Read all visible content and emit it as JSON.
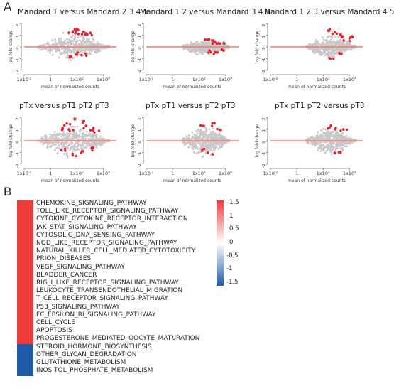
{
  "panel_a_letter": "A",
  "panel_b_letter": "B",
  "chart_data": [
    {
      "type": "scatter",
      "title": "Mandard 1 versus Mandard 2 3 4 5",
      "xlabel": "mean of normalized counts",
      "ylabel": "log fold change",
      "xscale": "log",
      "xlim": [
        0.01,
        100000
      ],
      "ylim": [
        -2.2,
        2.2
      ],
      "x_ticks": [
        "1x10-2",
        "1",
        "1x102",
        "1x104"
      ],
      "y_ticks": [
        "-2",
        "-1",
        "0",
        "1",
        "2"
      ],
      "cloud": {
        "color": "#c8c8c8",
        "x_range": [
          0.1,
          30000
        ],
        "max_lfc": 1.3
      },
      "significant": {
        "color": "#e8202a",
        "points": [
          [
            30,
            1.3
          ],
          [
            60,
            1.5
          ],
          [
            120,
            1.2
          ],
          [
            200,
            1.4
          ],
          [
            400,
            1.1
          ],
          [
            800,
            1.3
          ],
          [
            50,
            -0.8
          ],
          [
            150,
            -0.6
          ],
          [
            300,
            -0.7
          ],
          [
            1000,
            1.0
          ]
        ]
      },
      "baseline": {
        "color": "#ef7a6c",
        "y": 0
      }
    },
    {
      "type": "scatter",
      "title": "Mandard 1 2 versus Mandard 3 4 5",
      "xlabel": "mean of normalized counts",
      "ylabel": "log fold change",
      "xscale": "log",
      "xlim": [
        0.01,
        100000
      ],
      "ylim": [
        -2.2,
        2.2
      ],
      "x_ticks": [
        "1x10-2",
        "1",
        "1x102",
        "1x104"
      ],
      "y_ticks": [
        "-2",
        "-1",
        "0",
        "1",
        "2"
      ],
      "cloud": {
        "color": "#c8c8c8",
        "x_range": [
          5,
          20000
        ],
        "max_lfc": 0.8
      },
      "significant": {
        "color": "#e8202a",
        "points": [
          [
            400,
            0.6
          ],
          [
            900,
            0.5
          ],
          [
            1500,
            0.4
          ],
          [
            3000,
            0.3
          ],
          [
            600,
            -0.4
          ],
          [
            2000,
            -0.5
          ],
          [
            5000,
            -0.3
          ],
          [
            8000,
            0.4
          ]
        ]
      },
      "baseline": {
        "color": "#ef7a6c",
        "y": 0
      }
    },
    {
      "type": "scatter",
      "title": "Mandard 1 2 3 versus Mandard 4 5",
      "xlabel": "mean of normalized counts",
      "ylabel": "log fold change",
      "xscale": "log",
      "xlim": [
        0.01,
        100000
      ],
      "ylim": [
        -2.2,
        2.2
      ],
      "x_ticks": [
        "1x10-2",
        "1",
        "1x102",
        "1x104"
      ],
      "y_ticks": [
        "-2",
        "-1",
        "0",
        "1",
        "2"
      ],
      "cloud": {
        "color": "#c8c8c8",
        "x_range": [
          5,
          30000
        ],
        "max_lfc": 1.1
      },
      "significant": {
        "color": "#e8202a",
        "points": [
          [
            300,
            1.4
          ],
          [
            700,
            1.2
          ],
          [
            1500,
            1.0
          ],
          [
            3000,
            0.9
          ],
          [
            6000,
            0.6
          ],
          [
            500,
            -0.9
          ],
          [
            2500,
            -0.6
          ],
          [
            10000,
            0.8
          ]
        ]
      },
      "baseline": {
        "color": "#ef7a6c",
        "y": 0
      }
    },
    {
      "type": "scatter",
      "title": "pTx versus pT1 pT2 pT3",
      "xlabel": "mean of normalized counts",
      "ylabel": "log fold change",
      "xscale": "log",
      "xlim": [
        0.01,
        100000
      ],
      "ylim": [
        -2.2,
        2.2
      ],
      "x_ticks": [
        "1x10-2",
        "1",
        "1x102",
        "1x104"
      ],
      "y_ticks": [
        "-2",
        "-1",
        "0",
        "1",
        "2"
      ],
      "cloud": {
        "color": "#c8c8c8",
        "x_range": [
          0.1,
          30000
        ],
        "max_lfc": 1.6
      },
      "significant": {
        "color": "#e8202a",
        "points": [
          [
            5,
            1.0
          ],
          [
            20,
            1.4
          ],
          [
            80,
            1.8
          ],
          [
            200,
            1.6
          ],
          [
            500,
            1.2
          ],
          [
            1500,
            1.0
          ],
          [
            10,
            -0.8
          ],
          [
            60,
            -1.2
          ],
          [
            300,
            -1.0
          ],
          [
            1000,
            -0.7
          ],
          [
            3000,
            0.8
          ],
          [
            30,
            0.9
          ]
        ]
      },
      "baseline": {
        "color": "#ef7a6c",
        "y": 0
      }
    },
    {
      "type": "scatter",
      "title": "pTx pT1 versus pT2 pT3",
      "xlabel": "mean of normalized counts",
      "ylabel": "log fold change",
      "xscale": "log",
      "xlim": [
        0.01,
        100000
      ],
      "ylim": [
        -2.2,
        2.2
      ],
      "x_ticks": [
        "1x10-2",
        "1",
        "1x102",
        "1x104"
      ],
      "y_ticks": [
        "-2",
        "-1",
        "0",
        "1",
        "2"
      ],
      "cloud": {
        "color": "#c8c8c8",
        "x_range": [
          5,
          20000
        ],
        "max_lfc": 1.5
      },
      "significant": {
        "color": "#e8202a",
        "points": [
          [
            200,
            1.3
          ],
          [
            1500,
            1.4
          ],
          [
            800,
            -1.1
          ],
          [
            4000,
            0.9
          ],
          [
            300,
            -0.8
          ]
        ]
      },
      "baseline": {
        "color": "#ef7a6c",
        "y": 0
      }
    },
    {
      "type": "scatter",
      "title": "pTx pT1 pT2 versus pT3",
      "xlabel": "mean of normalized counts",
      "ylabel": "log fold change",
      "xscale": "log",
      "xlim": [
        0.01,
        100000
      ],
      "ylim": [
        -2.2,
        2.2
      ],
      "x_ticks": [
        "1x10-2",
        "1",
        "1x102",
        "1x104"
      ],
      "y_ticks": [
        "-2",
        "-1",
        "0",
        "1",
        "2"
      ],
      "cloud": {
        "color": "#c8c8c8",
        "x_range": [
          5,
          30000
        ],
        "max_lfc": 1.4
      },
      "significant": {
        "color": "#e8202a",
        "points": [
          [
            400,
            1.2
          ],
          [
            1200,
            1.0
          ],
          [
            5000,
            0.9
          ],
          [
            2500,
            -0.9
          ],
          [
            700,
            -1.1
          ]
        ]
      },
      "baseline": {
        "color": "#ef7a6c",
        "y": 0
      }
    },
    {
      "type": "heatmap",
      "rows": [
        {
          "label": "CHEMOKINE_SIGNALING_PATHWAY",
          "value": 1.5
        },
        {
          "label": "TOLL_LIKE_RECEPTOR_SIGNALING_PATHWAY",
          "value": 1.5
        },
        {
          "label": "CYTOKINE_CYTOKINE_RECEPTOR_INTERACTION",
          "value": 1.5
        },
        {
          "label": "JAK_STAT_SIGNALING_PATHWAY",
          "value": 1.5
        },
        {
          "label": "CYTOSOLIC_DNA_SENSING_PATHWAY",
          "value": 1.5
        },
        {
          "label": "NOD_LIKE_RECEPTOR_SIGNALING_PATHWAY",
          "value": 1.5
        },
        {
          "label": "NATURAL_KILLER_CELL_MEDIATED_CYTOTOXICITY",
          "value": 1.5
        },
        {
          "label": "PRION_DISEASES",
          "value": 1.5
        },
        {
          "label": "VEGF_SIGNALING_PATHWAY",
          "value": 1.5
        },
        {
          "label": "BLADDER_CANCER",
          "value": 1.5
        },
        {
          "label": "RIG_I_LIKE_RECEPTOR_SIGNALING_PATHWAY",
          "value": 1.5
        },
        {
          "label": "LEUKOCYTE_TRANSENDOTHELIAL_MIGRATION",
          "value": 1.5
        },
        {
          "label": "T_CELL_RECEPTOR_SIGNALING_PATHWAY",
          "value": 1.5
        },
        {
          "label": "P53_SIGNALING_PATHWAY",
          "value": 1.5
        },
        {
          "label": "FC_EPSILON_RI_SIGNALING_PATHWAY",
          "value": 1.5
        },
        {
          "label": "CELL_CYCLE",
          "value": 1.5
        },
        {
          "label": "APOPTOSIS",
          "value": 1.5
        },
        {
          "label": "PROGESTERONE_MEDIATED_OOCYTE_MATURATION",
          "value": 1.5
        },
        {
          "label": "STEROID_HORMONE_BIOSYNTHESIS",
          "value": -1.5
        },
        {
          "label": "OTHER_GLYCAN_DEGRADATION",
          "value": -1.5
        },
        {
          "label": "GLUTATHIONE_METABOLISM",
          "value": -1.5
        },
        {
          "label": "INOSITOL_PHOSPHATE_METABOLISM",
          "value": -1.5
        }
      ],
      "colorbar": {
        "ticks": [
          "1.5",
          "1",
          "0.5",
          "0",
          "-0.5",
          "-1",
          "-1.5"
        ],
        "range": [
          -1.5,
          1.5
        ],
        "colors": {
          "high": "#ee3b3b",
          "mid": "#ffffff",
          "low": "#1f5aa8"
        }
      }
    }
  ]
}
